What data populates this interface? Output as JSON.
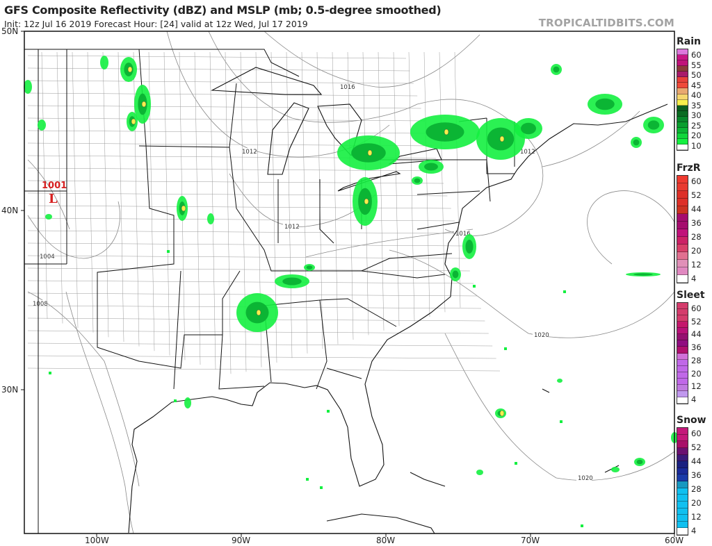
{
  "header": {
    "title": "GFS Composite Reflectivity (dBZ) and MSLP (mb; 0.5-degree smoothed)",
    "subtitle": "Init: 12z Jul 16 2019   Forecast Hour: [24]   valid at 12z Wed, Jul 17 2019",
    "brand": "TROPICALTIDBITS.COM"
  },
  "axes": {
    "lat_labels": [
      "50N",
      "40N",
      "30N"
    ],
    "lon_labels": [
      "100W",
      "90W",
      "80W",
      "70W",
      "60W"
    ]
  },
  "isobars": [
    "1016",
    "1012",
    "1012",
    "1016",
    "1012",
    "1020",
    "1020",
    "1004",
    "1008"
  ],
  "low": {
    "value": "1001",
    "symbol": "L",
    "color": "#d62020"
  },
  "colors": {
    "echo_light": "#14f040",
    "echo_mid": "#0bb534",
    "echo_dark": "#0a6b22",
    "echo_yellow": "#f7ef4c",
    "lines": "#777777",
    "coast": "#111111"
  },
  "legends": [
    {
      "title": "Rain",
      "labels": [
        "60",
        "55",
        "50",
        "45",
        "40",
        "35",
        "30",
        "25",
        "20",
        "10"
      ],
      "colors": [
        "#dd77dd",
        "#c71585",
        "#c0127a",
        "#8b3a3a",
        "#a81a6a",
        "#e8413a",
        "#ef4a3a",
        "#e8a870",
        "#f5d76e",
        "#f7ef4c",
        "#0a5e1e",
        "#0a6b22",
        "#08872a",
        "#099e2e",
        "#0bb534",
        "#11d63c",
        "#14f040",
        "#ffffff"
      ]
    },
    {
      "title": "FrzR",
      "labels": [
        "60",
        "52",
        "44",
        "36",
        "28",
        "20",
        "12",
        "4"
      ],
      "colors": [
        "#ee3a30",
        "#e83a30",
        "#dd3028",
        "#dd3028",
        "#cc3322",
        "#a50d6e",
        "#a50d6e",
        "#c0127a",
        "#cc2266",
        "#d8406a",
        "#e07090",
        "#e090b8",
        "#e088c0",
        "#ffffff"
      ]
    },
    {
      "title": "Sleet",
      "labels": [
        "60",
        "52",
        "44",
        "36",
        "28",
        "20",
        "12",
        "4"
      ],
      "colors": [
        "#d43c6c",
        "#d43c6c",
        "#d43c6c",
        "#c4186c",
        "#b81278",
        "#951070",
        "#900d80",
        "#b0106e",
        "#d070d8",
        "#c068e8",
        "#c068e8",
        "#c068e8",
        "#c068e8",
        "#c07ae0",
        "#c098ee",
        "#ffffff"
      ]
    },
    {
      "title": "Snow",
      "labels": [
        "60",
        "52",
        "44",
        "36",
        "28",
        "20",
        "12",
        "4"
      ],
      "colors": [
        "#c4187a",
        "#c4187a",
        "#a80f68",
        "#6a1070",
        "#3a1a7a",
        "#1a2080",
        "#1a2a98",
        "#1a3aa8",
        "#1898c0",
        "#10c0f0",
        "#10c0f0",
        "#10c0f0",
        "#10c0f0",
        "#10c0f0",
        "#10c0f0",
        "#ffffff"
      ]
    }
  ]
}
